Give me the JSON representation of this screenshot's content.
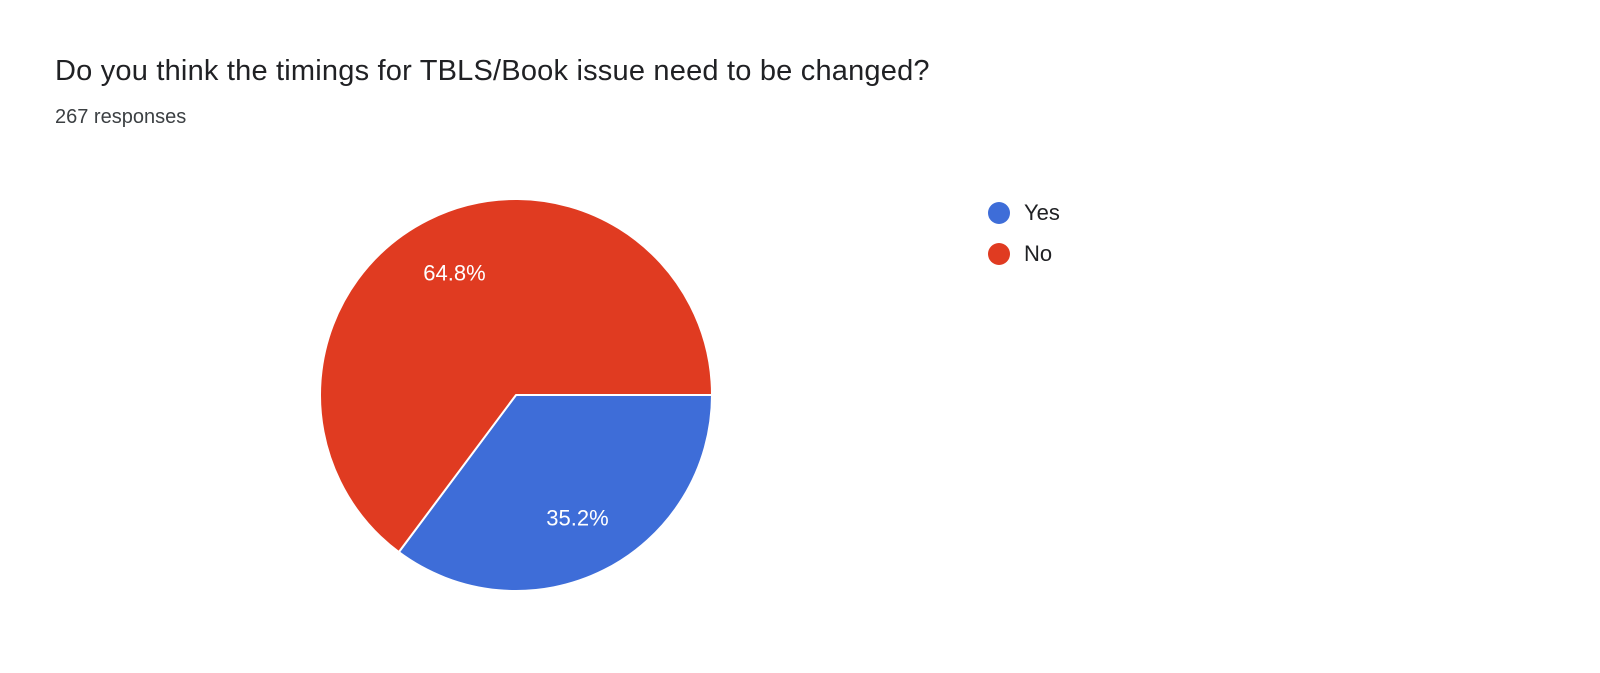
{
  "page": {
    "background": "#ffffff"
  },
  "chart_data": {
    "type": "pie",
    "title": "Do you think the timings for TBLS/Book issue need to be changed?",
    "subtitle": "267 responses",
    "slices": [
      {
        "label": "Yes",
        "value": 35.2,
        "display": "35.2%",
        "color": "#3E6DD8"
      },
      {
        "label": "No",
        "value": 64.8,
        "display": "64.8%",
        "color": "#E03B21"
      }
    ],
    "legend_position": "right",
    "start_angle_deg": 0,
    "direction": "clockwise",
    "label_color": "#ffffff",
    "slice_stroke": "#ffffff",
    "grid": false
  }
}
